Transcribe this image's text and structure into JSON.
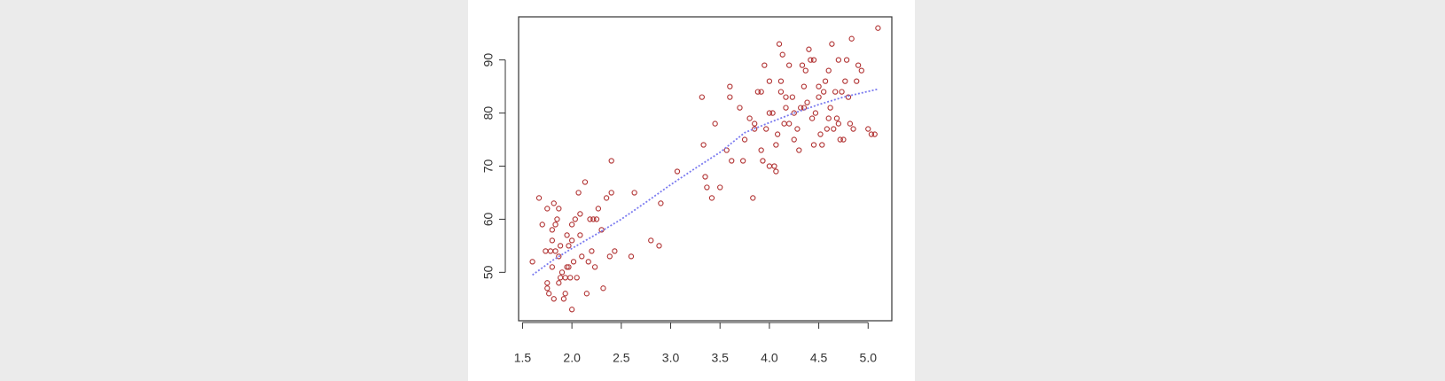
{
  "chart_data": {
    "type": "scatter",
    "xlim": [
      1.46,
      5.24
    ],
    "ylim": [
      40.88,
      98.12
    ],
    "xticks": [
      {
        "value": 1.5,
        "label": "1.5"
      },
      {
        "value": 2,
        "label": "2.0"
      },
      {
        "value": 2.5,
        "label": "2.5"
      },
      {
        "value": 3,
        "label": "3.0"
      },
      {
        "value": 3.5,
        "label": "3.5"
      },
      {
        "value": 4,
        "label": "4.0"
      },
      {
        "value": 4.5,
        "label": "4.5"
      },
      {
        "value": 5,
        "label": "5.0"
      }
    ],
    "yticks": [
      50,
      60,
      70,
      80,
      90
    ],
    "box": true,
    "series": [
      {
        "type": "scatter",
        "color": "#b03030",
        "x": [
          1.6,
          1.667,
          1.7,
          1.733,
          1.75,
          1.75,
          1.767,
          1.783,
          1.8,
          1.8,
          1.817,
          1.833,
          1.833,
          1.85,
          1.867,
          1.867,
          1.883,
          1.9,
          1.917,
          1.933,
          1.95,
          1.95,
          1.967,
          1.983,
          2.0,
          2.0,
          2.017,
          2.033,
          2.05,
          2.067,
          2.083,
          2.1,
          2.133,
          2.15,
          2.167,
          2.2,
          2.217,
          2.233,
          2.25,
          2.267,
          2.3,
          2.317,
          2.35,
          2.383,
          2.4,
          2.4,
          2.433,
          2.6,
          2.633,
          2.8,
          2.883,
          2.9,
          3.067,
          1.817,
          1.75,
          2.0,
          1.867,
          1.933,
          2.083,
          2.183,
          1.8,
          1.883,
          1.967,
          3.317,
          3.333,
          3.35,
          3.367,
          3.417,
          3.45,
          3.5,
          3.567,
          3.6,
          3.6,
          3.617,
          3.7,
          3.733,
          3.75,
          3.8,
          3.833,
          3.85,
          3.883,
          3.917,
          3.933,
          3.95,
          3.967,
          4.0,
          4.0,
          4.033,
          4.05,
          4.067,
          4.083,
          4.1,
          4.117,
          4.133,
          4.15,
          4.167,
          4.2,
          4.233,
          4.25,
          4.283,
          4.3,
          4.317,
          4.333,
          4.35,
          4.367,
          4.383,
          4.4,
          4.417,
          4.433,
          4.45,
          4.467,
          4.5,
          4.517,
          4.533,
          4.55,
          4.567,
          4.583,
          4.6,
          4.617,
          4.633,
          4.65,
          4.667,
          4.683,
          4.7,
          4.717,
          4.733,
          4.75,
          4.767,
          4.783,
          4.8,
          4.817,
          4.833,
          4.85,
          4.883,
          4.9,
          4.933,
          5.0,
          5.033,
          5.067,
          5.1,
          4.0,
          4.2,
          3.917,
          4.6,
          4.35,
          4.45,
          4.067,
          4.167,
          4.5,
          3.85,
          4.7,
          4.117,
          4.25
        ],
        "values": [
          52,
          64,
          59,
          54,
          47,
          62,
          46,
          54,
          51,
          58,
          45,
          54,
          59,
          60,
          48,
          53,
          55,
          50,
          45,
          49,
          51,
          57,
          55,
          49,
          56,
          43,
          52,
          60,
          49,
          65,
          57,
          53,
          67,
          46,
          52,
          54,
          60,
          51,
          60,
          62,
          58,
          47,
          64,
          53,
          71,
          65,
          54,
          53,
          65,
          56,
          55,
          63,
          69,
          63,
          48,
          59,
          62,
          46,
          61,
          60,
          56,
          49,
          51,
          83,
          74,
          68,
          66,
          64,
          78,
          66,
          73,
          85,
          83,
          71,
          81,
          71,
          75,
          79,
          64,
          78,
          84,
          84,
          71,
          89,
          77,
          80,
          86,
          80,
          70,
          69,
          76,
          93,
          84,
          91,
          78,
          81,
          78,
          83,
          75,
          77,
          73,
          81,
          89,
          85,
          88,
          82,
          92,
          90,
          79,
          74,
          80,
          83,
          76,
          74,
          84,
          86,
          77,
          88,
          81,
          93,
          77,
          84,
          79,
          90,
          75,
          84,
          75,
          86,
          90,
          83,
          78,
          94,
          77,
          86,
          89,
          88,
          77,
          76,
          76,
          96,
          70,
          89,
          73,
          79,
          81,
          90,
          74,
          83,
          85,
          77,
          78,
          86,
          80
        ]
      },
      {
        "type": "line",
        "color": "#7b7bf0",
        "x": [
          1.6,
          1.8,
          2.0,
          2.25,
          2.5,
          2.75,
          3.0,
          3.25,
          3.5,
          3.75,
          4.0,
          4.25,
          4.5,
          4.75,
          5.1
        ],
        "values": [
          49.5,
          52.2,
          54.5,
          57.2,
          60.0,
          63.2,
          66.5,
          69.6,
          72.6,
          76.3,
          78.2,
          80.0,
          81.6,
          83.0,
          84.5
        ]
      }
    ]
  }
}
